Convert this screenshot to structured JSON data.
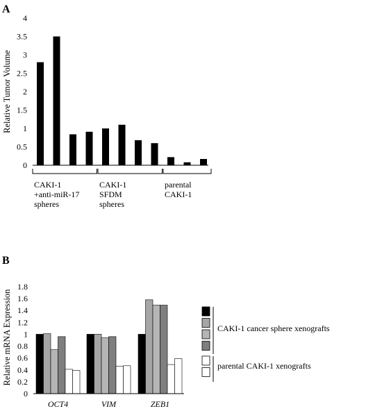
{
  "chart_data": [
    {
      "panel": "A",
      "type": "bar",
      "ylabel": "Relative Tumor Volume",
      "ylim": [
        0,
        4
      ],
      "yticks": [
        "0",
        "0.5",
        "1",
        "1.5",
        "2",
        "2.5",
        "3",
        "3.5",
        "4"
      ],
      "values": [
        2.8,
        3.5,
        0.84,
        0.91,
        1.0,
        1.1,
        0.68,
        0.6,
        0.22,
        0.08,
        0.17
      ],
      "bar_color": "#000000",
      "groups": [
        {
          "lines": [
            "CAKI-1",
            "+anti-miR-17",
            "spheres"
          ],
          "count": 4
        },
        {
          "lines": [
            "CAKI-1",
            "SFDM",
            "spheres"
          ],
          "count": 4
        },
        {
          "lines": [
            "parental",
            "CAKI-1"
          ],
          "count": 3
        }
      ],
      "grid": false
    },
    {
      "panel": "B",
      "type": "bar",
      "ylabel": "Relative mRNA Expression",
      "ylim": [
        0,
        1.8
      ],
      "yticks": [
        "0",
        "0.2",
        "0.4",
        "0.6",
        "0.8",
        "1",
        "1.2",
        "1.4",
        "1.6",
        "1.8"
      ],
      "categories": [
        "OCT4",
        "VIM",
        "ZEB1"
      ],
      "series": [
        {
          "values": [
            1.0,
            1.0,
            1.0
          ],
          "color": "#000000"
        },
        {
          "values": [
            1.01,
            1.0,
            1.58
          ],
          "color": "#a6a6a6"
        },
        {
          "values": [
            0.74,
            0.94,
            1.49
          ],
          "color": "#b5b5b5"
        },
        {
          "values": [
            0.96,
            0.96,
            1.49
          ],
          "color": "#7f7f7f"
        },
        {
          "values": [
            0.41,
            0.46,
            0.49
          ],
          "color": "#ffffff"
        },
        {
          "values": [
            0.39,
            0.47,
            0.59
          ],
          "color": "#ffffff"
        }
      ],
      "legend": {
        "placement": "right",
        "groups": [
          {
            "label": "CAKI-1 cancer sphere xenografts",
            "colors": [
              "#000000",
              "#a6a6a6",
              "#b5b5b5",
              "#7f7f7f"
            ]
          },
          {
            "label": "parental CAKI-1 xenografts",
            "colors": [
              "#ffffff",
              "#ffffff"
            ]
          }
        ]
      },
      "grid": false
    }
  ]
}
